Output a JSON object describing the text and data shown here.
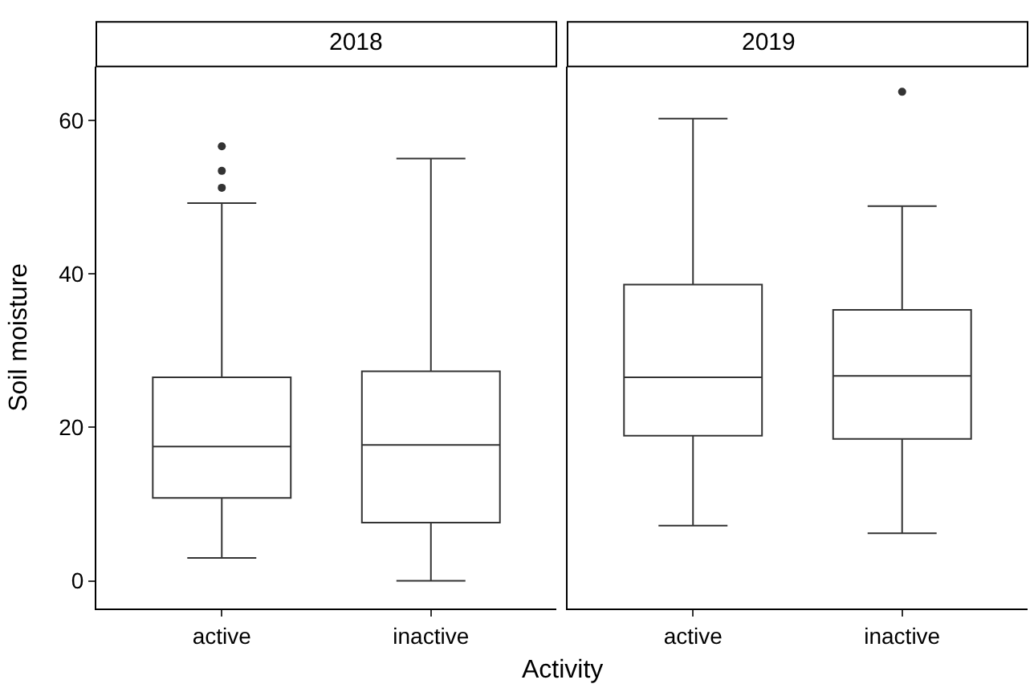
{
  "chart_data": [
    {
      "type": "box",
      "title": "2018",
      "xlabel": "Activity",
      "ylabel": "Soil moisture",
      "categories": [
        "active",
        "inactive"
      ],
      "ylim": [
        -3.6,
        67
      ],
      "yticks": [
        0,
        20,
        40,
        60
      ],
      "boxes": [
        {
          "low": 3.0,
          "q1": 10.8,
          "median": 17.5,
          "q3": 26.5,
          "high": 49.2,
          "outliers": [
            51.2,
            53.4,
            56.6
          ]
        },
        {
          "low": 0,
          "q1": 7.6,
          "median": 17.7,
          "q3": 27.3,
          "high": 55
        }
      ]
    },
    {
      "type": "box",
      "title": "2019",
      "categories": [
        "active",
        "inactive"
      ],
      "ylim": [
        -3.6,
        67
      ],
      "yticks": [
        0,
        20,
        40,
        60
      ],
      "tick_labels": "x",
      "boxes": [
        {
          "low": 7.2,
          "q1": 18.9,
          "median": 26.5,
          "q3": 38.6,
          "high": 60.2
        },
        {
          "low": 6.2,
          "q1": 18.5,
          "median": 26.7,
          "q3": 35.3,
          "high": 48.8,
          "outliers": [
            63.7
          ]
        }
      ]
    }
  ]
}
